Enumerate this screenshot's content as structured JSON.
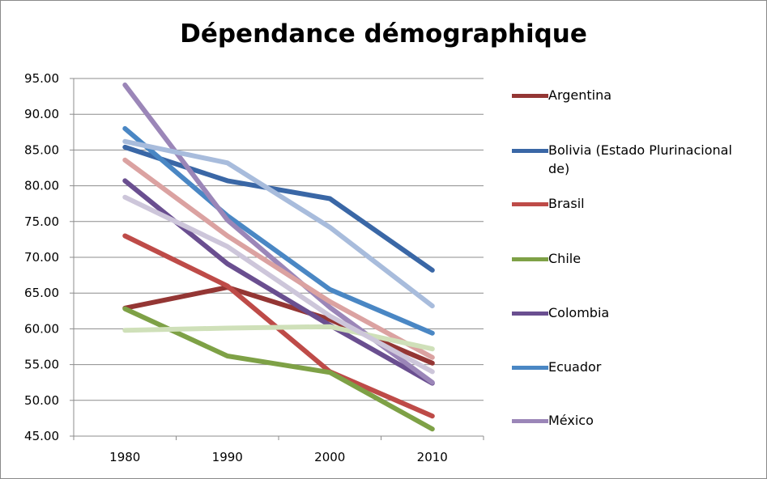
{
  "chart_data": {
    "type": "line",
    "title": "Dépendance démographique",
    "xlabel": "",
    "ylabel": "",
    "categories": [
      "1980",
      "1990",
      "2000",
      "2010"
    ],
    "ylim": [
      45,
      95
    ],
    "yticks": [
      "45.00",
      "50.00",
      "55.00",
      "60.00",
      "65.00",
      "70.00",
      "75.00",
      "80.00",
      "85.00",
      "90.00",
      "95.00"
    ],
    "grid": true,
    "legend_position": "right",
    "series": [
      {
        "name": "Argentina",
        "color": "#943634",
        "values": [
          62.9,
          65.8,
          61.3,
          55.2
        ],
        "in_legend": true
      },
      {
        "name": "Bolivia (Estado Plurinacional de)",
        "color": "#3a67a6",
        "values": [
          85.4,
          80.7,
          78.2,
          68.2
        ],
        "in_legend": true
      },
      {
        "name": "Brasil",
        "color": "#be4b48",
        "values": [
          73.0,
          66.0,
          54.0,
          47.8
        ],
        "in_legend": true
      },
      {
        "name": "Chile",
        "color": "#7ea146",
        "values": [
          62.8,
          56.2,
          53.9,
          46.0
        ],
        "in_legend": true
      },
      {
        "name": "Colombia",
        "color": "#6a4f90",
        "values": [
          80.7,
          69.1,
          60.5,
          52.4
        ],
        "in_legend": true
      },
      {
        "name": "Ecuador",
        "color": "#4a87c4",
        "values": [
          88.0,
          75.8,
          65.5,
          59.4
        ],
        "in_legend": true
      },
      {
        "name": "México",
        "color": "#9b86b8",
        "values": [
          94.1,
          75.2,
          63.0,
          52.5
        ],
        "in_legend": true
      },
      {
        "name": "",
        "color": "#a8bcdc",
        "values": [
          86.2,
          83.2,
          74.2,
          63.2
        ],
        "in_legend": false
      },
      {
        "name": "",
        "color": "#dba2a1",
        "values": [
          83.6,
          73.0,
          63.8,
          56.0
        ],
        "in_legend": false
      },
      {
        "name": "",
        "color": "#cfe0b9",
        "values": [
          59.8,
          60.1,
          60.3,
          57.2
        ],
        "in_legend": false
      },
      {
        "name": "",
        "color": "#cdc6da",
        "values": [
          78.4,
          71.5,
          61.8,
          54.0
        ],
        "in_legend": false
      }
    ]
  }
}
